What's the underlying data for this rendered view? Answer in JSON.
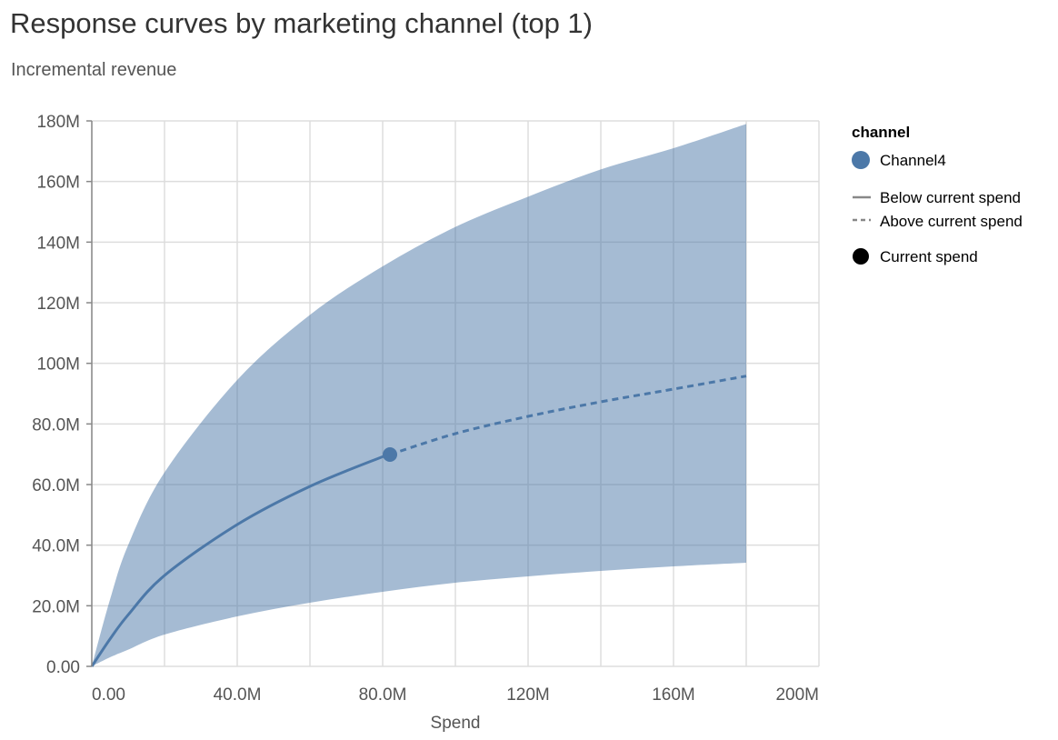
{
  "title": "Response curves by marketing channel (top 1)",
  "subtitle": "Incremental revenue",
  "chart_data": {
    "type": "line",
    "xlabel": "Spend",
    "ylabel": "",
    "xlim": [
      0,
      200000000
    ],
    "ylim": [
      0,
      180000000
    ],
    "x_ticks": [
      "0.00",
      "40.0M",
      "80.0M",
      "120M",
      "160M",
      "200M"
    ],
    "y_ticks": [
      "0.00",
      "20.0M",
      "40.0M",
      "60.0M",
      "80.0M",
      "100M",
      "120M",
      "140M",
      "160M",
      "180M"
    ],
    "grid": true,
    "x": [
      0,
      5,
      10,
      20,
      40,
      60,
      80,
      100,
      120,
      140,
      160,
      180
    ],
    "x_unit": "M",
    "series": [
      {
        "name": "Channel4",
        "color": "#4c78a8",
        "mean": [
          0,
          9,
          17,
          30,
          46.8,
          59.4,
          69.2,
          76.8,
          82.5,
          87.3,
          91.5,
          95.8
        ],
        "upper": [
          0,
          22,
          40,
          64,
          94.5,
          116,
          132,
          145,
          155,
          164,
          171,
          179
        ],
        "lower": [
          0,
          3,
          5.5,
          10.5,
          16.5,
          21,
          24.6,
          27.6,
          29.7,
          31.5,
          33,
          34.2
        ]
      }
    ],
    "current_spend": {
      "x": 82,
      "y": 69.9
    },
    "legend": {
      "position": "right",
      "title": "channel",
      "entries": [
        "Channel4"
      ],
      "line_styles": [
        "Below current spend",
        "Above current spend"
      ],
      "marker": "Current spend"
    }
  }
}
